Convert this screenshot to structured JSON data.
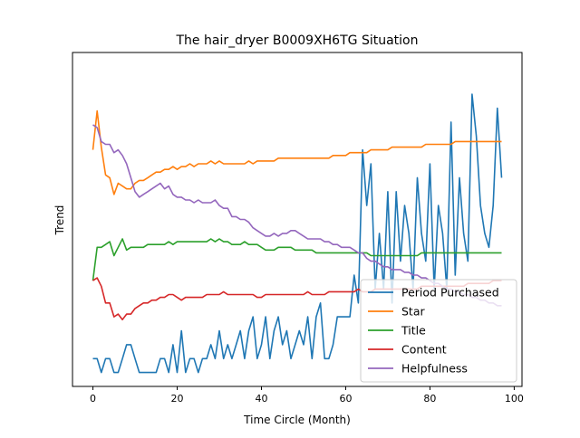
{
  "chart_data": {
    "type": "line",
    "title": "The hair_dryer B0009XH6TG Situation",
    "xlabel": "Time Circle (Month)",
    "ylabel": "Trend",
    "xlim": [
      -4.85,
      101.85
    ],
    "ylim": [
      0,
      1.2
    ],
    "x_ticks": [
      0,
      20,
      40,
      60,
      80,
      100
    ],
    "y_ticks_shown": false,
    "legend_position": "lower-right",
    "series": [
      {
        "name": "Period Purchased",
        "color": "#1f77b4",
        "x": [
          0,
          1,
          2,
          3,
          4,
          5,
          6,
          7,
          8,
          9,
          10,
          11,
          12,
          13,
          14,
          15,
          16,
          17,
          18,
          19,
          20,
          21,
          22,
          23,
          24,
          25,
          26,
          27,
          28,
          29,
          30,
          31,
          32,
          33,
          34,
          35,
          36,
          37,
          38,
          39,
          40,
          41,
          42,
          43,
          44,
          45,
          46,
          47,
          48,
          49,
          50,
          51,
          52,
          53,
          54,
          55,
          56,
          57,
          58,
          59,
          60,
          61,
          62,
          63,
          64,
          65,
          66,
          67,
          68,
          69,
          70,
          71,
          72,
          73,
          74,
          75,
          76,
          77,
          78,
          79,
          80,
          81,
          82,
          83,
          84,
          85,
          86,
          87,
          88,
          89,
          90,
          91,
          92,
          93,
          94,
          95,
          96,
          97
        ],
        "y": [
          0.1,
          0.1,
          0.05,
          0.1,
          0.1,
          0.05,
          0.05,
          0.1,
          0.15,
          0.15,
          0.1,
          0.05,
          0.05,
          0.05,
          0.05,
          0.05,
          0.1,
          0.1,
          0.05,
          0.15,
          0.05,
          0.2,
          0.05,
          0.1,
          0.1,
          0.05,
          0.1,
          0.1,
          0.15,
          0.1,
          0.2,
          0.1,
          0.15,
          0.1,
          0.15,
          0.2,
          0.1,
          0.2,
          0.25,
          0.1,
          0.15,
          0.25,
          0.1,
          0.2,
          0.25,
          0.15,
          0.2,
          0.1,
          0.15,
          0.2,
          0.15,
          0.25,
          0.1,
          0.25,
          0.3,
          0.1,
          0.1,
          0.15,
          0.25,
          0.25,
          0.25,
          0.25,
          0.4,
          0.3,
          0.85,
          0.65,
          0.8,
          0.35,
          0.55,
          0.35,
          0.7,
          0.3,
          0.7,
          0.45,
          0.65,
          0.55,
          0.35,
          0.75,
          0.55,
          0.45,
          0.8,
          0.35,
          0.65,
          0.55,
          0.35,
          0.95,
          0.4,
          0.75,
          0.55,
          0.45,
          1.05,
          0.9,
          0.65,
          0.55,
          0.5,
          0.65,
          1.0,
          0.75
        ]
      },
      {
        "name": "Star",
        "color": "#ff7f0e",
        "x": [
          0,
          1,
          2,
          3,
          4,
          5,
          6,
          7,
          8,
          9,
          10,
          11,
          12,
          13,
          14,
          15,
          16,
          17,
          18,
          19,
          20,
          21,
          22,
          23,
          24,
          25,
          26,
          27,
          28,
          29,
          30,
          31,
          32,
          33,
          34,
          35,
          36,
          37,
          38,
          39,
          40,
          41,
          42,
          43,
          44,
          45,
          46,
          47,
          48,
          49,
          50,
          51,
          52,
          53,
          54,
          55,
          56,
          57,
          58,
          59,
          60,
          61,
          62,
          63,
          64,
          65,
          66,
          67,
          68,
          69,
          70,
          71,
          72,
          73,
          74,
          75,
          76,
          77,
          78,
          79,
          80,
          81,
          82,
          83,
          84,
          85,
          86,
          87,
          88,
          89,
          90,
          91,
          92,
          93,
          94,
          95,
          96,
          97
        ],
        "y": [
          0.85,
          0.99,
          0.86,
          0.76,
          0.75,
          0.69,
          0.73,
          0.72,
          0.71,
          0.71,
          0.73,
          0.74,
          0.74,
          0.75,
          0.76,
          0.77,
          0.77,
          0.78,
          0.78,
          0.79,
          0.78,
          0.79,
          0.79,
          0.8,
          0.79,
          0.8,
          0.8,
          0.8,
          0.81,
          0.8,
          0.81,
          0.8,
          0.8,
          0.8,
          0.8,
          0.8,
          0.8,
          0.81,
          0.8,
          0.81,
          0.81,
          0.81,
          0.81,
          0.81,
          0.82,
          0.82,
          0.82,
          0.82,
          0.82,
          0.82,
          0.82,
          0.82,
          0.82,
          0.82,
          0.82,
          0.82,
          0.82,
          0.83,
          0.83,
          0.83,
          0.83,
          0.84,
          0.84,
          0.84,
          0.84,
          0.84,
          0.85,
          0.85,
          0.85,
          0.85,
          0.85,
          0.86,
          0.86,
          0.86,
          0.86,
          0.86,
          0.86,
          0.86,
          0.86,
          0.87,
          0.87,
          0.87,
          0.87,
          0.87,
          0.87,
          0.87,
          0.88,
          0.88,
          0.88,
          0.88,
          0.88,
          0.88,
          0.88,
          0.88,
          0.88,
          0.88,
          0.88,
          0.88
        ]
      },
      {
        "name": "Title",
        "color": "#2ca02c",
        "x": [
          0,
          1,
          2,
          3,
          4,
          5,
          6,
          7,
          8,
          9,
          10,
          11,
          12,
          13,
          14,
          15,
          16,
          17,
          18,
          19,
          20,
          21,
          22,
          23,
          24,
          25,
          26,
          27,
          28,
          29,
          30,
          31,
          32,
          33,
          34,
          35,
          36,
          37,
          38,
          39,
          40,
          41,
          42,
          43,
          44,
          45,
          46,
          47,
          48,
          49,
          50,
          51,
          52,
          53,
          54,
          55,
          56,
          57,
          58,
          59,
          60,
          61,
          62,
          63,
          64,
          65,
          66,
          67,
          68,
          69,
          70,
          71,
          72,
          73,
          74,
          75,
          76,
          77,
          78,
          79,
          80,
          81,
          82,
          83,
          84,
          85,
          86,
          87,
          88,
          89,
          90,
          91,
          92,
          93,
          94,
          95,
          96,
          97
        ],
        "y": [
          0.38,
          0.5,
          0.5,
          0.51,
          0.52,
          0.47,
          0.5,
          0.53,
          0.49,
          0.5,
          0.5,
          0.5,
          0.5,
          0.51,
          0.51,
          0.51,
          0.51,
          0.51,
          0.52,
          0.51,
          0.52,
          0.52,
          0.52,
          0.52,
          0.52,
          0.52,
          0.52,
          0.52,
          0.53,
          0.52,
          0.53,
          0.52,
          0.52,
          0.51,
          0.51,
          0.51,
          0.52,
          0.51,
          0.51,
          0.51,
          0.5,
          0.49,
          0.49,
          0.49,
          0.5,
          0.5,
          0.5,
          0.5,
          0.49,
          0.49,
          0.49,
          0.49,
          0.49,
          0.48,
          0.48,
          0.48,
          0.48,
          0.48,
          0.48,
          0.48,
          0.48,
          0.48,
          0.48,
          0.48,
          0.48,
          0.48,
          0.47,
          0.47,
          0.47,
          0.47,
          0.47,
          0.47,
          0.47,
          0.47,
          0.47,
          0.47,
          0.47,
          0.47,
          0.48,
          0.48,
          0.48,
          0.48,
          0.48,
          0.48,
          0.48,
          0.48,
          0.48,
          0.48,
          0.48,
          0.48,
          0.48,
          0.48,
          0.48,
          0.48,
          0.48,
          0.48,
          0.48,
          0.48
        ]
      },
      {
        "name": "Content",
        "color": "#d62728",
        "x": [
          0,
          1,
          2,
          3,
          4,
          5,
          6,
          7,
          8,
          9,
          10,
          11,
          12,
          13,
          14,
          15,
          16,
          17,
          18,
          19,
          20,
          21,
          22,
          23,
          24,
          25,
          26,
          27,
          28,
          29,
          30,
          31,
          32,
          33,
          34,
          35,
          36,
          37,
          38,
          39,
          40,
          41,
          42,
          43,
          44,
          45,
          46,
          47,
          48,
          49,
          50,
          51,
          52,
          53,
          54,
          55,
          56,
          57,
          58,
          59,
          60,
          61,
          62,
          63,
          64,
          65,
          66,
          67,
          68,
          69,
          70,
          71,
          72,
          73,
          74,
          75,
          76,
          77,
          78,
          79,
          80,
          81,
          82,
          83,
          84,
          85,
          86,
          87,
          88,
          89,
          90,
          91,
          92,
          93,
          94,
          95,
          96,
          97
        ],
        "y": [
          0.38,
          0.39,
          0.36,
          0.3,
          0.3,
          0.25,
          0.26,
          0.24,
          0.26,
          0.26,
          0.28,
          0.29,
          0.3,
          0.3,
          0.31,
          0.31,
          0.32,
          0.32,
          0.33,
          0.33,
          0.32,
          0.31,
          0.32,
          0.32,
          0.32,
          0.32,
          0.32,
          0.33,
          0.33,
          0.33,
          0.33,
          0.34,
          0.33,
          0.33,
          0.33,
          0.33,
          0.33,
          0.33,
          0.33,
          0.32,
          0.32,
          0.33,
          0.33,
          0.33,
          0.33,
          0.33,
          0.33,
          0.33,
          0.33,
          0.33,
          0.33,
          0.34,
          0.33,
          0.33,
          0.33,
          0.33,
          0.34,
          0.34,
          0.34,
          0.34,
          0.34,
          0.34,
          0.34,
          0.35,
          0.34,
          0.34,
          0.34,
          0.35,
          0.35,
          0.35,
          0.35,
          0.35,
          0.35,
          0.35,
          0.35,
          0.35,
          0.35,
          0.35,
          0.36,
          0.36,
          0.36,
          0.36,
          0.36,
          0.36,
          0.36,
          0.36,
          0.36,
          0.36,
          0.36,
          0.37,
          0.37,
          0.37,
          0.37,
          0.37,
          0.37,
          0.38,
          0.38,
          0.38
        ]
      },
      {
        "name": "Helpfulness",
        "color": "#9467bd",
        "x": [
          0,
          1,
          2,
          3,
          4,
          5,
          6,
          7,
          8,
          9,
          10,
          11,
          12,
          13,
          14,
          15,
          16,
          17,
          18,
          19,
          20,
          21,
          22,
          23,
          24,
          25,
          26,
          27,
          28,
          29,
          30,
          31,
          32,
          33,
          34,
          35,
          36,
          37,
          38,
          39,
          40,
          41,
          42,
          43,
          44,
          45,
          46,
          47,
          48,
          49,
          50,
          51,
          52,
          53,
          54,
          55,
          56,
          57,
          58,
          59,
          60,
          61,
          62,
          63,
          64,
          65,
          66,
          67,
          68,
          69,
          70,
          71,
          72,
          73,
          74,
          75,
          76,
          77,
          78,
          79,
          80,
          81,
          82,
          83,
          84,
          85,
          86,
          87,
          88,
          89,
          90,
          91,
          92,
          93,
          94,
          95,
          96,
          97
        ],
        "y": [
          0.94,
          0.93,
          0.88,
          0.87,
          0.87,
          0.84,
          0.85,
          0.83,
          0.8,
          0.75,
          0.7,
          0.68,
          0.69,
          0.7,
          0.71,
          0.72,
          0.73,
          0.71,
          0.72,
          0.69,
          0.68,
          0.68,
          0.67,
          0.67,
          0.66,
          0.67,
          0.66,
          0.66,
          0.66,
          0.67,
          0.65,
          0.64,
          0.64,
          0.61,
          0.61,
          0.6,
          0.6,
          0.59,
          0.57,
          0.56,
          0.55,
          0.54,
          0.54,
          0.55,
          0.54,
          0.55,
          0.55,
          0.56,
          0.56,
          0.55,
          0.54,
          0.53,
          0.53,
          0.53,
          0.53,
          0.52,
          0.52,
          0.51,
          0.51,
          0.5,
          0.5,
          0.5,
          0.49,
          0.48,
          0.48,
          0.46,
          0.45,
          0.45,
          0.44,
          0.43,
          0.43,
          0.42,
          0.42,
          0.42,
          0.41,
          0.41,
          0.4,
          0.4,
          0.39,
          0.39,
          0.38,
          0.37,
          0.37,
          0.36,
          0.35,
          0.35,
          0.34,
          0.34,
          0.33,
          0.33,
          0.32,
          0.32,
          0.31,
          0.31,
          0.3,
          0.3,
          0.29,
          0.29
        ]
      }
    ]
  }
}
